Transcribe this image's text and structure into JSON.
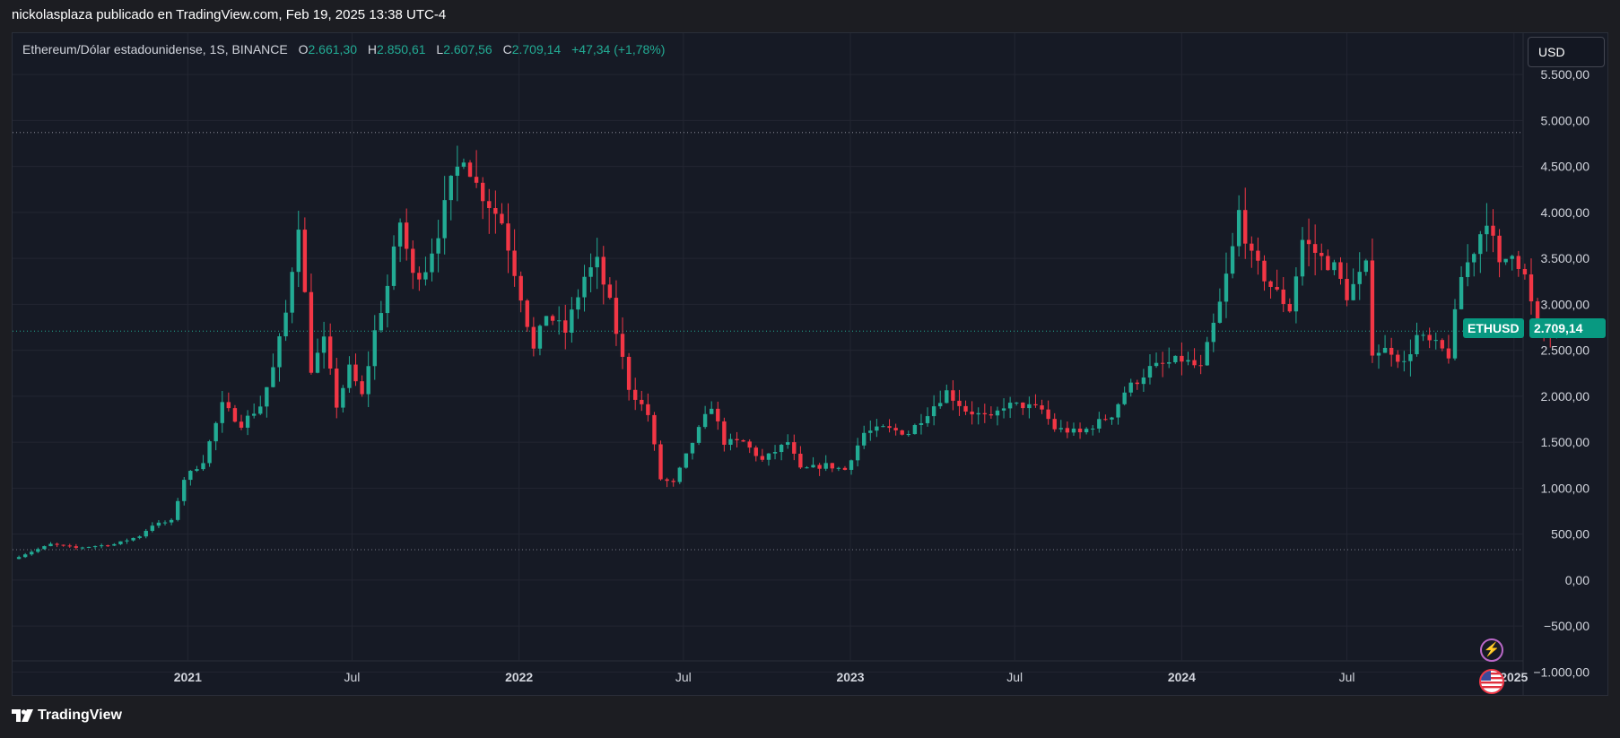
{
  "header": {
    "caption": "nickolasplaza publicado en TradingView.com, Feb 19, 2025 13:38 UTC-4"
  },
  "legend": {
    "symbol": "Ethereum/Dólar estadounidense, 1S, BINANCE",
    "open_label": "O",
    "open": "2.661,30",
    "high_label": "H",
    "high": "2.850,61",
    "low_label": "L",
    "low": "2.607,56",
    "close_label": "C",
    "close": "2.709,14",
    "change": "+47,34 (+1,78%)"
  },
  "currency_button": "USD",
  "price_tag": {
    "symbol": "ETHUSD",
    "value": "2.709,14"
  },
  "footer": {
    "brand": "TradingView"
  },
  "colors": {
    "up": "#22ab94",
    "down": "#f23645",
    "background": "#161a25",
    "grid": "#232632",
    "axis_text": "#d1d4dc"
  },
  "chart_data": {
    "type": "candlestick",
    "title": "Ethereum/Dólar estadounidense, 1S, BINANCE",
    "interval": "weekly",
    "ylim": [
      -1250,
      5950
    ],
    "y_ticks": [
      5500,
      5000,
      4500,
      4000,
      3500,
      3000,
      2500,
      2000,
      1500,
      1000,
      500,
      0,
      -500,
      -1000
    ],
    "y_tick_labels": [
      "5.500,00",
      "5.000,00",
      "4.500,00",
      "4.000,00",
      "3.500,00",
      "3.000,00",
      "2.500,00",
      "2.000,00",
      "1.500,00",
      "1.000,00",
      "500,00",
      "0,00",
      "−500,00",
      "−1.000,00"
    ],
    "x_ticks": [
      "2021",
      "Jul",
      "2022",
      "Jul",
      "2023",
      "Jul",
      "2024",
      "Jul",
      "2025"
    ],
    "x_tick_dates": [
      "2021-01-01",
      "2021-07-01",
      "2022-01-01",
      "2022-07-01",
      "2023-01-01",
      "2023-07-01",
      "2024-01-01",
      "2024-07-01",
      "2025-01-01"
    ],
    "x_range": [
      "2020-06-22",
      "2025-04-14"
    ],
    "grid": true,
    "dotted_levels": [
      4870,
      4870,
      330
    ],
    "last_price": 2709.14,
    "path": [
      [
        "2020-06-29",
        230
      ],
      [
        "2020-08-10",
        390
      ],
      [
        "2020-09-07",
        350
      ],
      [
        "2020-10-19",
        390
      ],
      [
        "2020-11-16",
        480
      ],
      [
        "2020-11-30",
        600
      ],
      [
        "2020-12-21",
        640
      ],
      [
        "2021-01-04",
        1100
      ],
      [
        "2021-01-25",
        1300
      ],
      [
        "2021-02-15",
        1900
      ],
      [
        "2021-03-08",
        1700
      ],
      [
        "2021-03-29",
        1900
      ],
      [
        "2021-04-12",
        2300
      ],
      [
        "2021-04-26",
        2900
      ],
      [
        "2021-05-10",
        3900
      ],
      [
        "2021-05-24",
        2300
      ],
      [
        "2021-06-07",
        2600
      ],
      [
        "2021-06-21",
        1900
      ],
      [
        "2021-07-05",
        2300
      ],
      [
        "2021-07-19",
        2000
      ],
      [
        "2021-08-02",
        2700
      ],
      [
        "2021-08-16",
        3200
      ],
      [
        "2021-08-30",
        3900
      ],
      [
        "2021-09-13",
        3300
      ],
      [
        "2021-09-27",
        3400
      ],
      [
        "2021-10-11",
        3800
      ],
      [
        "2021-10-25",
        4300
      ],
      [
        "2021-11-08",
        4650
      ],
      [
        "2021-11-22",
        4300
      ],
      [
        "2021-12-06",
        4100
      ],
      [
        "2021-12-20",
        3900
      ],
      [
        "2022-01-10",
        3100
      ],
      [
        "2022-01-24",
        2500
      ],
      [
        "2022-02-07",
        2900
      ],
      [
        "2022-02-28",
        2700
      ],
      [
        "2022-03-21",
        3300
      ],
      [
        "2022-04-04",
        3450
      ],
      [
        "2022-04-18",
        3000
      ],
      [
        "2022-05-09",
        2100
      ],
      [
        "2022-05-30",
        1800
      ],
      [
        "2022-06-13",
        1100
      ],
      [
        "2022-06-27",
        1050
      ],
      [
        "2022-07-18",
        1500
      ],
      [
        "2022-08-08",
        1900
      ],
      [
        "2022-08-22",
        1500
      ],
      [
        "2022-09-12",
        1500
      ],
      [
        "2022-10-03",
        1300
      ],
      [
        "2022-10-31",
        1500
      ],
      [
        "2022-11-14",
        1200
      ],
      [
        "2022-12-12",
        1250
      ],
      [
        "2023-01-02",
        1200
      ],
      [
        "2023-01-23",
        1600
      ],
      [
        "2023-02-13",
        1650
      ],
      [
        "2023-03-13",
        1600
      ],
      [
        "2023-04-10",
        1900
      ],
      [
        "2023-04-24",
        2050
      ],
      [
        "2023-05-15",
        1850
      ],
      [
        "2023-06-12",
        1750
      ],
      [
        "2023-06-26",
        1900
      ],
      [
        "2023-07-17",
        1900
      ],
      [
        "2023-08-07",
        1850
      ],
      [
        "2023-08-21",
        1650
      ],
      [
        "2023-09-18",
        1600
      ],
      [
        "2023-10-23",
        1800
      ],
      [
        "2023-11-06",
        2050
      ],
      [
        "2023-12-04",
        2300
      ],
      [
        "2024-01-08",
        2400
      ],
      [
        "2024-01-29",
        2300
      ],
      [
        "2024-02-19",
        3000
      ],
      [
        "2024-03-04",
        3600
      ],
      [
        "2024-03-11",
        4000
      ],
      [
        "2024-03-25",
        3500
      ],
      [
        "2024-04-15",
        3200
      ],
      [
        "2024-05-06",
        2950
      ],
      [
        "2024-05-20",
        3700
      ],
      [
        "2024-06-10",
        3500
      ],
      [
        "2024-06-24",
        3400
      ],
      [
        "2024-07-08",
        3100
      ],
      [
        "2024-07-29",
        3400
      ],
      [
        "2024-08-05",
        2500
      ],
      [
        "2024-08-26",
        2500
      ],
      [
        "2024-09-09",
        2350
      ],
      [
        "2024-09-23",
        2650
      ],
      [
        "2024-10-14",
        2550
      ],
      [
        "2024-10-28",
        2450
      ],
      [
        "2024-11-11",
        3300
      ],
      [
        "2024-11-25",
        3600
      ],
      [
        "2024-12-09",
        3950
      ],
      [
        "2024-12-23",
        3400
      ],
      [
        "2025-01-06",
        3600
      ],
      [
        "2025-01-20",
        3300
      ],
      [
        "2025-02-03",
        2700
      ],
      [
        "2025-02-17",
        2709
      ]
    ]
  }
}
